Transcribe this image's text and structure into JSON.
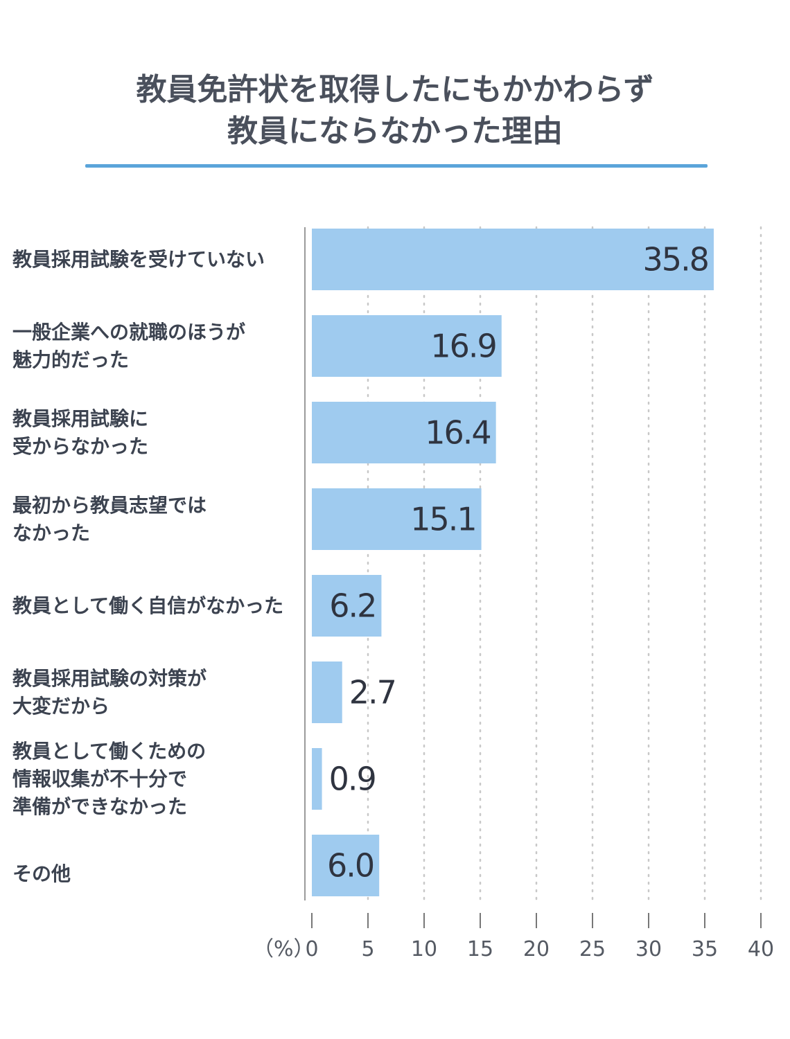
{
  "title": [
    "教員免許状を取得したにもかかわらず",
    "教員にならなかった理由"
  ],
  "chart_data": {
    "type": "bar",
    "orientation": "horizontal",
    "title": "教員免許状を取得したにもかかわらず 教員にならなかった理由",
    "categories": [
      [
        "教員採用試験を受けていない"
      ],
      [
        "一般企業への就職のほうが",
        "魅力的だった"
      ],
      [
        "教員採用試験に",
        "受からなかった"
      ],
      [
        "最初から教員志望では",
        "なかった"
      ],
      [
        "教員として働く自信がなかった"
      ],
      [
        "教員採用試験の対策が",
        "大変だから"
      ],
      [
        "教員として働くための",
        "情報収集が不十分で",
        "準備ができなかった"
      ],
      [
        "その他"
      ]
    ],
    "values": [
      35.8,
      16.9,
      16.4,
      15.1,
      6.2,
      2.7,
      0.9,
      6.0
    ],
    "value_labels": [
      "35.8",
      "16.9",
      "16.4",
      "15.1",
      "6.2",
      "2.7",
      "0.9",
      "6.0"
    ],
    "xlim": [
      0,
      40
    ],
    "xticks": [
      "0",
      "5",
      "10",
      "15",
      "20",
      "25",
      "30",
      "35",
      "40"
    ],
    "unit": "（%）",
    "grid": "vertical dotted",
    "bar_color": "#9fcbef"
  },
  "colors": {
    "accent": "#5aa4da",
    "bar": "#9fcbef",
    "text": "#3c4350",
    "axis_text": "#555a63",
    "grid": "#c8c8c8"
  }
}
